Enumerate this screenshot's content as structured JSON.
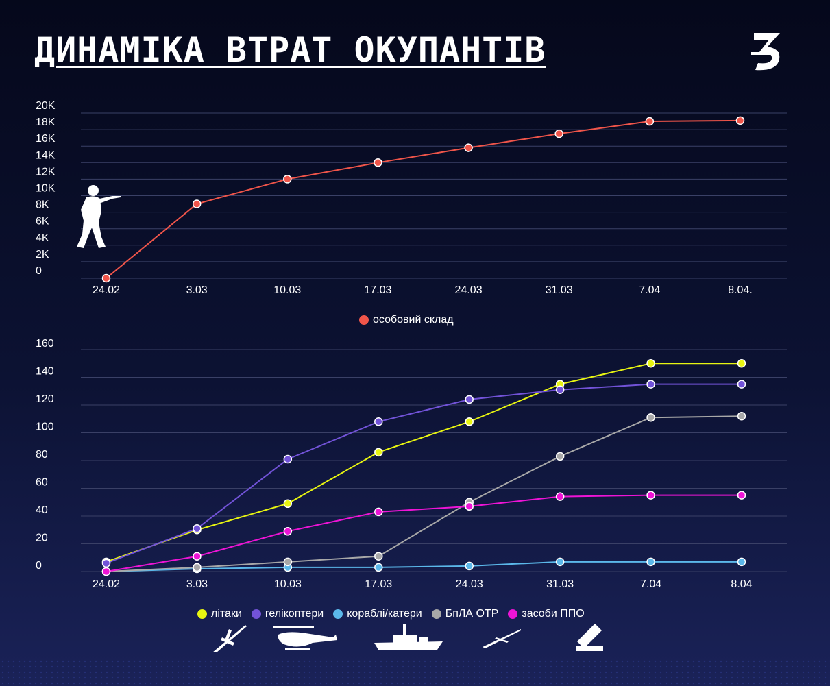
{
  "title": "ДИНАМІКА ВТРАТ ОКУПАНТІВ",
  "logo_text": "З",
  "chart_data": [
    {
      "type": "line",
      "categories": [
        "24.02",
        "3.03",
        "10.03",
        "17.03",
        "24.03",
        "31.03",
        "7.04",
        "8.04."
      ],
      "ylim": [
        0,
        20000
      ],
      "yticks": [
        0,
        2000,
        4000,
        6000,
        8000,
        10000,
        12000,
        14000,
        16000,
        18000,
        20000
      ],
      "ytick_labels": [
        "0",
        "2K",
        "4K",
        "6K",
        "8K",
        "10K",
        "12K",
        "14K",
        "16K",
        "18K",
        "20K"
      ],
      "grid": true,
      "legend_position": "bottom",
      "series": [
        {
          "name": "особовий склад",
          "color": "#f0554a",
          "values": [
            0,
            9000,
            12000,
            14000,
            15800,
            17500,
            19000,
            19100
          ]
        }
      ]
    },
    {
      "type": "line",
      "categories": [
        "24.02",
        "3.03",
        "10.03",
        "17.03",
        "24.03",
        "31.03",
        "7.04",
        "8.04"
      ],
      "ylim": [
        0,
        160
      ],
      "yticks": [
        0,
        20,
        40,
        60,
        80,
        100,
        120,
        140,
        160
      ],
      "ytick_labels": [
        "0",
        "20",
        "40",
        "60",
        "80",
        "100",
        "120",
        "140",
        "160"
      ],
      "grid": true,
      "legend_position": "bottom",
      "series": [
        {
          "name": "літаки",
          "color": "#e8f511",
          "values": [
            7,
            30,
            49,
            86,
            108,
            135,
            150,
            150
          ]
        },
        {
          "name": "гелікоптери",
          "color": "#7253d8",
          "values": [
            6,
            31,
            81,
            108,
            124,
            131,
            135,
            135
          ]
        },
        {
          "name": "кораблі/катери",
          "color": "#5bb8ea",
          "values": [
            0,
            2,
            3,
            3,
            4,
            7,
            7,
            7
          ]
        },
        {
          "name": "БпЛА ОТР",
          "color": "#a8a8a8",
          "values": [
            0,
            3,
            7,
            11,
            50,
            83,
            111,
            112
          ]
        },
        {
          "name": "засоби ППО",
          "color": "#ee14d6",
          "values": [
            0,
            11,
            29,
            43,
            47,
            54,
            55,
            55
          ]
        }
      ]
    }
  ],
  "icons": {
    "soldier": "soldier-icon",
    "plane": "plane-icon",
    "helicopter": "helicopter-icon",
    "ship": "ship-icon",
    "drone": "drone-icon",
    "missile_launcher": "missile-launcher-icon"
  }
}
